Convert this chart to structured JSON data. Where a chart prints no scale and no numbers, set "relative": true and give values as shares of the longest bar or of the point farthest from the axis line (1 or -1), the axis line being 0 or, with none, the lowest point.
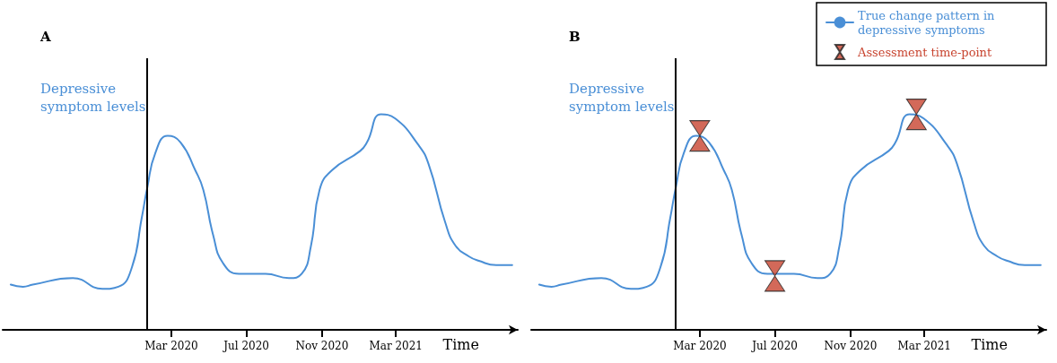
{
  "chart_data": [
    {
      "type": "line",
      "title": "A",
      "ylabel": "Depressive symptom levels",
      "xlabel": "Time",
      "relative": true,
      "grid": false,
      "legend": false,
      "marker": "none",
      "line_style": "solid",
      "xlim": [
        "2019-06-01",
        "2021-09-15"
      ],
      "xticks": [
        {
          "value": "2020-03-01",
          "label": "Mar 2020"
        },
        {
          "value": "2020-07-01",
          "label": "Jul 2020"
        },
        {
          "value": "2020-11-01",
          "label": "Nov 2020"
        },
        {
          "value": "2021-03-01",
          "label": "Mar 2021"
        }
      ],
      "ref_lines": [
        {
          "axis": "x",
          "value": "2020-01-22",
          "color": "#000000",
          "line_style": "solid"
        }
      ],
      "x": [
        "2019-06-14",
        "2019-07-04",
        "2019-07-20",
        "2019-09-23",
        "2019-11-10",
        "2019-12-06",
        "2019-12-28",
        "2020-01-13",
        "2020-01-22",
        "2020-02-04",
        "2020-02-24",
        "2020-03-16",
        "2020-04-09",
        "2020-04-22",
        "2020-05-08",
        "2020-05-24",
        "2020-06-19",
        "2020-08-01",
        "2020-09-08",
        "2020-09-29",
        "2020-10-14",
        "2020-10-28",
        "2020-11-17",
        "2021-01-02",
        "2021-01-13",
        "2021-02-05",
        "2021-02-28",
        "2021-04-06",
        "2021-04-23",
        "2021-05-20",
        "2021-06-06",
        "2021-06-28",
        "2021-07-14",
        "2021-08-11",
        "2021-09-06"
      ],
      "series": [
        {
          "color": "#4a8fd6",
          "values": [
            0.21,
            0.2,
            0.21,
            0.24,
            0.19,
            0.2,
            0.29,
            0.52,
            0.66,
            0.82,
            0.9,
            0.87,
            0.74,
            0.65,
            0.44,
            0.31,
            0.26,
            0.26,
            0.24,
            0.26,
            0.39,
            0.65,
            0.74,
            0.83,
            0.87,
            1,
            0.98,
            0.86,
            0.77,
            0.5,
            0.39,
            0.34,
            0.32,
            0.3,
            0.3
          ]
        }
      ]
    },
    {
      "type": "line",
      "title": "B",
      "ylabel": "Depressive symptom levels",
      "xlabel": "Time",
      "relative": true,
      "grid": false,
      "legend": "top right",
      "marker": "none",
      "line_style": "solid",
      "xlim": [
        "2019-06-01",
        "2021-09-15"
      ],
      "xticks": [
        {
          "value": "2020-03-01",
          "label": "Mar 2020"
        },
        {
          "value": "2020-07-01",
          "label": "Jul 2020"
        },
        {
          "value": "2020-11-01",
          "label": "Nov 2020"
        },
        {
          "value": "2021-03-01",
          "label": "Mar 2021"
        }
      ],
      "ref_lines": [
        {
          "axis": "x",
          "value": "2020-01-22",
          "color": "#000000",
          "line_style": "solid"
        }
      ],
      "x": [
        "2019-06-14",
        "2019-07-04",
        "2019-07-20",
        "2019-09-23",
        "2019-11-10",
        "2019-12-06",
        "2019-12-28",
        "2020-01-13",
        "2020-01-22",
        "2020-02-04",
        "2020-02-24",
        "2020-03-16",
        "2020-04-09",
        "2020-04-22",
        "2020-05-08",
        "2020-05-24",
        "2020-06-19",
        "2020-08-01",
        "2020-09-08",
        "2020-09-29",
        "2020-10-14",
        "2020-10-28",
        "2020-11-17",
        "2021-01-02",
        "2021-01-13",
        "2021-02-05",
        "2021-02-28",
        "2021-04-06",
        "2021-04-23",
        "2021-05-20",
        "2021-06-06",
        "2021-06-28",
        "2021-07-14",
        "2021-08-11",
        "2021-09-06"
      ],
      "series": [
        {
          "name": "True change pattern in depressive symptoms",
          "color": "#4a8fd6",
          "values": [
            0.21,
            0.2,
            0.21,
            0.24,
            0.19,
            0.2,
            0.29,
            0.52,
            0.66,
            0.82,
            0.9,
            0.87,
            0.74,
            0.65,
            0.44,
            0.31,
            0.26,
            0.26,
            0.24,
            0.26,
            0.39,
            0.65,
            0.74,
            0.83,
            0.87,
            1,
            0.98,
            0.86,
            0.77,
            0.5,
            0.39,
            0.34,
            0.32,
            0.3,
            0.3
          ]
        },
        {
          "name": "Assessment time-point",
          "type": "scatter",
          "color": "#c8442f",
          "x": [
            "2020-03-01",
            "2020-07-01",
            "2021-02-16"
          ],
          "values": [
            0.9,
            0.25,
            1
          ]
        }
      ]
    }
  ]
}
